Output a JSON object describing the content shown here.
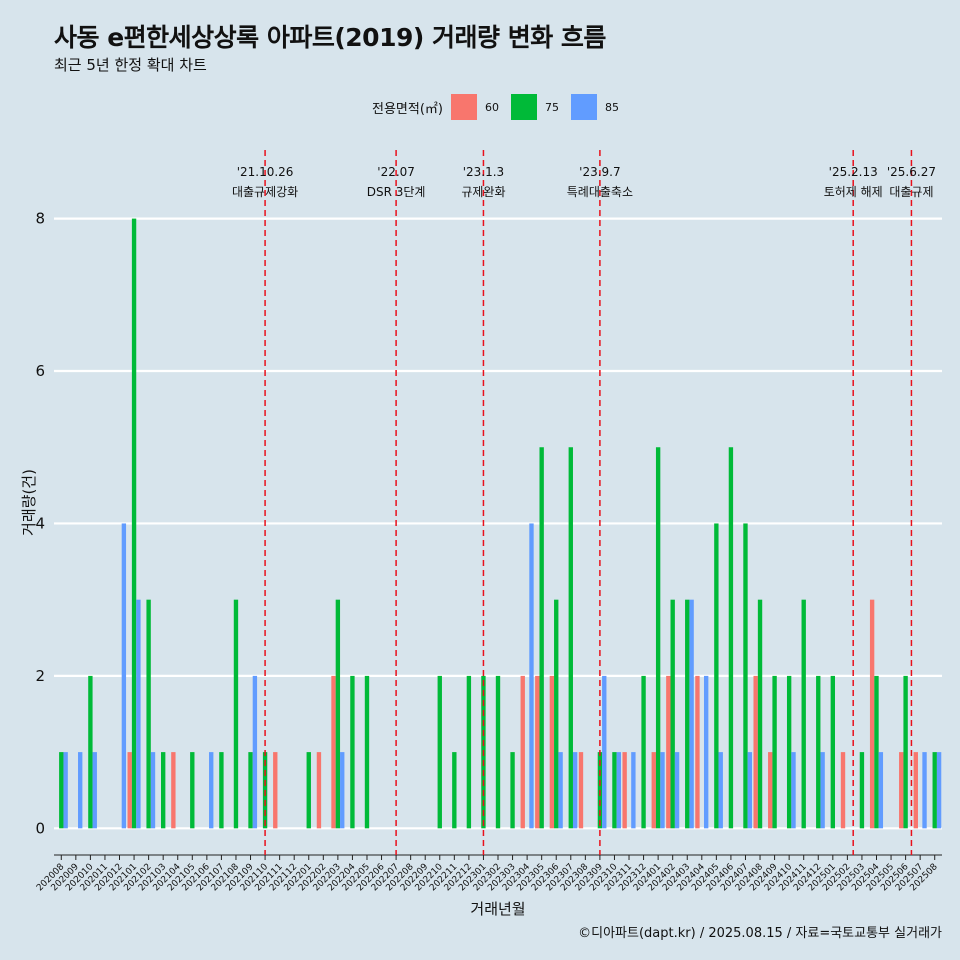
{
  "header": {
    "title": "사동 e편한세상상록 아파트(2019) 거래량 변화 흐름",
    "subtitle": "최근 5년 한정 확대 차트"
  },
  "legend": {
    "title": "전용면적(㎡)",
    "items": [
      {
        "label": "60",
        "color": "#f8766d"
      },
      {
        "label": "75",
        "color": "#00ba38"
      },
      {
        "label": "85",
        "color": "#619cff"
      }
    ]
  },
  "caption": "©디아파트(dapt.kr) / 2025.08.15 / 자료=국토교통부 실거래가",
  "chart_data": {
    "type": "bar",
    "title": "사동 e편한세상상록 아파트(2019) 거래량 변화 흐름",
    "subtitle": "최근 5년 한정 확대 차트",
    "xlabel": "거래년월",
    "ylabel": "거래량(건)",
    "ylim": [
      -0.35,
      8.9
    ],
    "yticks": [
      0,
      2,
      4,
      6,
      8
    ],
    "grid": true,
    "legend_position": "top",
    "categories": [
      "202008",
      "202009",
      "202010",
      "202011",
      "202012",
      "202101",
      "202102",
      "202103",
      "202104",
      "202105",
      "202106",
      "202107",
      "202108",
      "202109",
      "202110",
      "202111",
      "202112",
      "202201",
      "202202",
      "202203",
      "202204",
      "202205",
      "202206",
      "202207",
      "202208",
      "202209",
      "202210",
      "202211",
      "202212",
      "202301",
      "202302",
      "202303",
      "202304",
      "202305",
      "202306",
      "202307",
      "202308",
      "202309",
      "202310",
      "202311",
      "202312",
      "202401",
      "202402",
      "202403",
      "202404",
      "202405",
      "202406",
      "202407",
      "202408",
      "202409",
      "202410",
      "202411",
      "202412",
      "202501",
      "202502",
      "202503",
      "202504",
      "202505",
      "202506",
      "202507",
      "202508"
    ],
    "series": [
      {
        "name": "60",
        "color": "#f8766d",
        "values": [
          0,
          0,
          0,
          0,
          0,
          1,
          0,
          0,
          1,
          0,
          0,
          0,
          0,
          0,
          0,
          1,
          0,
          0,
          1,
          2,
          0,
          0,
          0,
          0,
          0,
          0,
          0,
          0,
          0,
          0,
          0,
          0,
          2,
          2,
          2,
          0,
          1,
          0,
          0,
          1,
          0,
          1,
          2,
          0,
          2,
          0,
          0,
          0,
          2,
          1,
          0,
          0,
          0,
          0,
          1,
          0,
          3,
          0,
          1,
          1,
          0
        ]
      },
      {
        "name": "75",
        "color": "#00ba38",
        "values": [
          1,
          0,
          2,
          0,
          0,
          8,
          3,
          1,
          0,
          1,
          0,
          1,
          3,
          1,
          1,
          0,
          0,
          1,
          0,
          3,
          2,
          2,
          0,
          0,
          0,
          0,
          2,
          1,
          2,
          2,
          2,
          1,
          0,
          5,
          3,
          5,
          0,
          1,
          1,
          0,
          2,
          5,
          3,
          3,
          0,
          4,
          5,
          4,
          3,
          2,
          2,
          3,
          2,
          2,
          0,
          1,
          2,
          0,
          2,
          0,
          1
        ]
      },
      {
        "name": "85",
        "color": "#619cff",
        "values": [
          1,
          1,
          1,
          0,
          4,
          3,
          1,
          0,
          0,
          0,
          1,
          0,
          0,
          2,
          0,
          0,
          0,
          0,
          0,
          1,
          0,
          0,
          0,
          0,
          0,
          0,
          0,
          0,
          0,
          0,
          0,
          0,
          4,
          0,
          1,
          1,
          0,
          2,
          1,
          1,
          0,
          1,
          1,
          3,
          2,
          1,
          0,
          1,
          0,
          0,
          1,
          0,
          1,
          0,
          0,
          0,
          1,
          0,
          0,
          1,
          1
        ]
      }
    ],
    "events": [
      {
        "index": 14.0,
        "date": "'21.10.26",
        "label": "대출규제강화"
      },
      {
        "index": 23.0,
        "date": "'22.07",
        "label": "DSR 3단계"
      },
      {
        "index": 29.0,
        "date": "'23.1.3",
        "label": "규제완화"
      },
      {
        "index": 37.0,
        "date": "'23.9.7",
        "label": "특례대출축소"
      },
      {
        "index": 54.4,
        "date": "'25.2.13",
        "label": "토허제 해제"
      },
      {
        "index": 58.4,
        "date": "'25.6.27",
        "label": "대출규제"
      }
    ]
  }
}
